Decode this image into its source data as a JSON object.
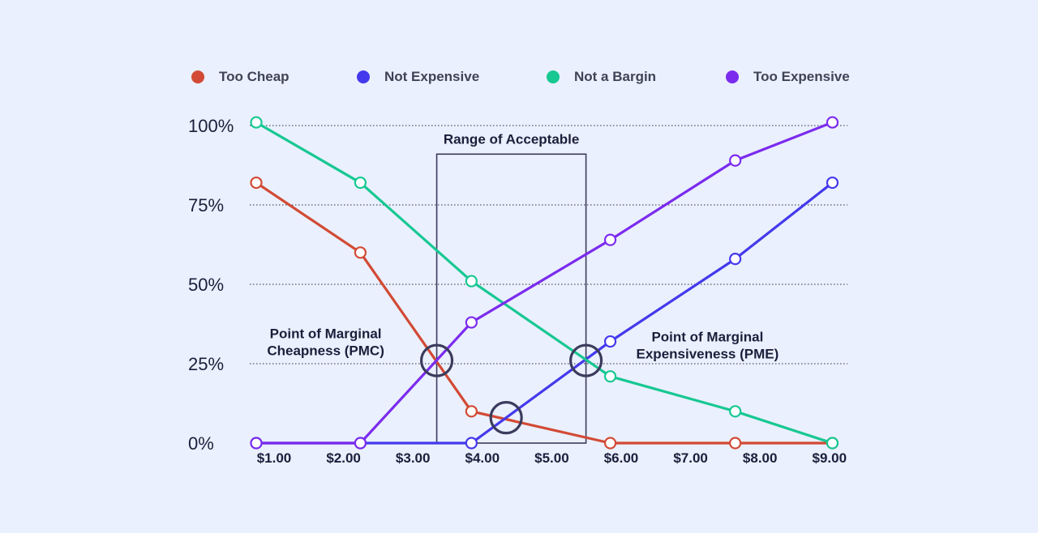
{
  "chart_data": {
    "type": "line",
    "legend_position": "top",
    "grid": "horizontal-dotted",
    "ylim": [
      0,
      100
    ],
    "xlim": [
      1,
      9
    ],
    "yticks": [
      {
        "value": 0,
        "label": "0%"
      },
      {
        "value": 25,
        "label": "25%"
      },
      {
        "value": 50,
        "label": "50%"
      },
      {
        "value": 75,
        "label": "75%"
      },
      {
        "value": 100,
        "label": "100%"
      }
    ],
    "xticks": [
      {
        "value": 1,
        "label": "$1.00"
      },
      {
        "value": 2,
        "label": "$2.00"
      },
      {
        "value": 3,
        "label": "$3.00"
      },
      {
        "value": 4,
        "label": "$4.00"
      },
      {
        "value": 5,
        "label": "$5.00"
      },
      {
        "value": 6,
        "label": "$6.00"
      },
      {
        "value": 7,
        "label": "$7.00"
      },
      {
        "value": 8,
        "label": "$8.00"
      },
      {
        "value": 9,
        "label": "$9.00"
      }
    ],
    "series": [
      {
        "name": "Too Cheap",
        "color": "#D24A35",
        "points": [
          [
            1,
            82
          ],
          [
            2.5,
            60
          ],
          [
            4.1,
            10
          ],
          [
            6.1,
            0
          ],
          [
            7.9,
            0
          ],
          [
            9.3,
            0
          ]
        ]
      },
      {
        "name": "Not Expensive",
        "color": "#4439EC",
        "points": [
          [
            1,
            0
          ],
          [
            2.5,
            0
          ],
          [
            4.1,
            0
          ],
          [
            6.1,
            32
          ],
          [
            7.9,
            58
          ],
          [
            9.3,
            82
          ]
        ]
      },
      {
        "name": "Not a Bargin",
        "color": "#17C892",
        "points": [
          [
            1,
            101
          ],
          [
            2.5,
            82
          ],
          [
            4.1,
            51
          ],
          [
            6.1,
            21
          ],
          [
            7.9,
            10
          ],
          [
            9.3,
            0
          ]
        ]
      },
      {
        "name": "Too Expensive",
        "color": "#7B2BEE",
        "points": [
          [
            1,
            0
          ],
          [
            2.5,
            0
          ],
          [
            4.1,
            38
          ],
          [
            6.1,
            64
          ],
          [
            7.9,
            89
          ],
          [
            9.3,
            101
          ]
        ]
      }
    ],
    "range_box": {
      "label": "Range of Acceptable",
      "x_start": 3.6,
      "x_end": 5.75,
      "y_top": 91
    },
    "markers": [
      {
        "x": 3.6,
        "y": 26,
        "color": "#3A3B5C"
      },
      {
        "x": 4.6,
        "y": 8,
        "color": "#3A3B5C"
      },
      {
        "x": 5.75,
        "y": 26,
        "color": "#3A3B5C"
      }
    ],
    "annotations": [
      {
        "lines": [
          "Point of Marginal",
          "Cheapness (PMC)"
        ],
        "x": 2.0,
        "y": 33
      },
      {
        "lines": [
          "Point of Marginal",
          "Expensiveness (PME)"
        ],
        "x": 7.5,
        "y": 32
      }
    ]
  }
}
